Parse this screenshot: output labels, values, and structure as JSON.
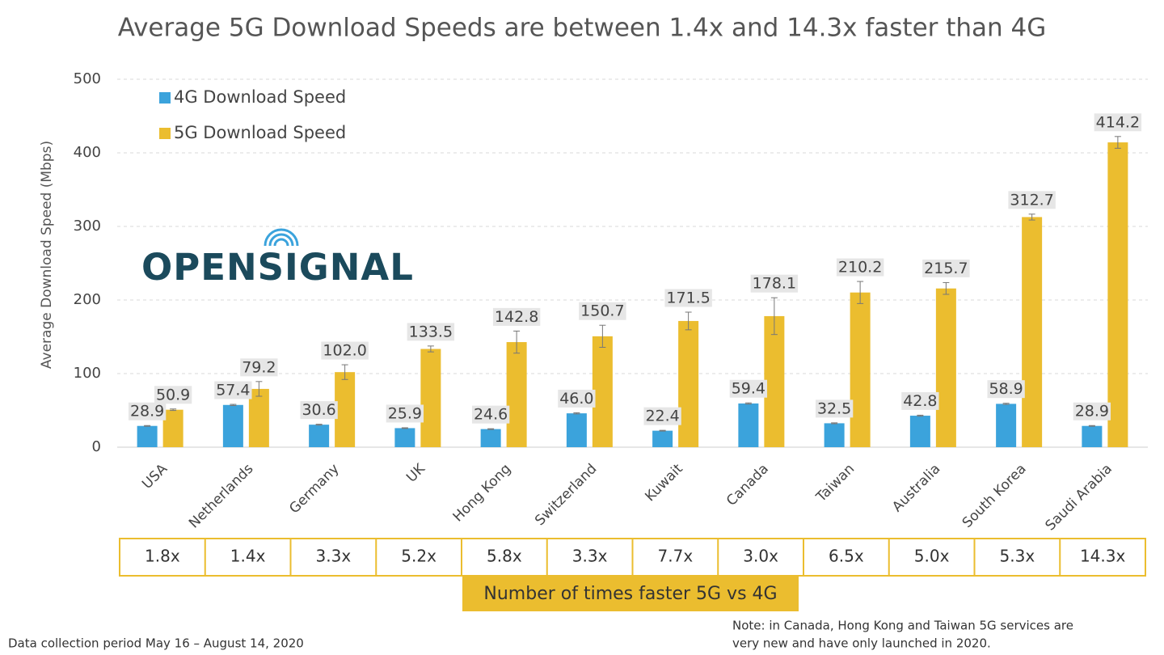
{
  "chart_data": {
    "type": "bar",
    "title": "Average 5G Download Speeds are between 1.4x and 14.3x faster than 4G",
    "y_label": "Average Download Speed (Mbps)",
    "categories": [
      "USA",
      "Netherlands",
      "Germany",
      "UK",
      "Hong Kong",
      "Switzerland",
      "Kuwait",
      "Canada",
      "Taiwan",
      "Australia",
      "South Korea",
      "Saudi Arabia"
    ],
    "series": [
      {
        "name": "4G Download Speed",
        "color": "#3ba3dc",
        "values": [
          28.9,
          57.4,
          30.6,
          25.9,
          24.6,
          46.0,
          22.4,
          59.4,
          32.5,
          42.8,
          58.9,
          28.9
        ],
        "value_labels": [
          "28.9",
          "57.4",
          "30.6",
          "25.9",
          "24.6",
          "46.0",
          "22.4",
          "59.4",
          "32.5",
          "42.8",
          "58.9",
          "28.9"
        ],
        "errors": [
          0.5,
          0.8,
          0.6,
          0.5,
          0.5,
          0.8,
          0.5,
          0.8,
          0.6,
          0.7,
          0.8,
          0.5
        ]
      },
      {
        "name": "5G Download Speed",
        "color": "#ebbd2f",
        "values": [
          50.9,
          79.2,
          102.0,
          133.5,
          142.8,
          150.7,
          171.5,
          178.1,
          210.2,
          215.7,
          312.7,
          414.2
        ],
        "value_labels": [
          "50.9",
          "79.2",
          "102.0",
          "133.5",
          "142.8",
          "150.7",
          "171.5",
          "178.1",
          "210.2",
          "215.7",
          "312.7",
          "414.2"
        ],
        "errors": [
          1,
          10,
          10,
          4,
          15,
          15,
          12,
          25,
          15,
          8,
          4,
          8
        ]
      }
    ],
    "ylim": [
      0,
      500
    ],
    "yticks": [
      0,
      100,
      200,
      300,
      400,
      500
    ],
    "grid": true,
    "legend": "upper-left",
    "logo": "OPENSIGNAL",
    "multipliers": [
      "1.8x",
      "1.4x",
      "3.3x",
      "5.2x",
      "5.8x",
      "3.3x",
      "7.7x",
      "3.0x",
      "6.5x",
      "5.0x",
      "5.3x",
      "14.3x"
    ],
    "multipliers_label": "Number of times faster 5G vs 4G",
    "footer": "Data collection period May 16 – August 14, 2020",
    "note": [
      "Note: in Canada, Hong Kong and Taiwan 5G services are",
      "very new and have only launched in 2020."
    ]
  }
}
